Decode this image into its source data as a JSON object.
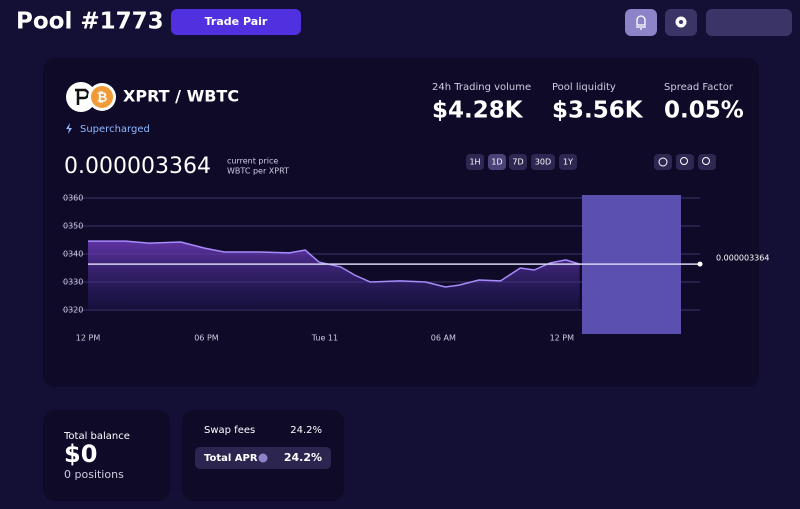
{
  "header": {
    "title": "Pool #1773",
    "button": "Trade Pair"
  },
  "pool": {
    "pair": "XPRT / WBTC",
    "badge": "Supercharged",
    "stats": [
      {
        "label": "24h Trading volume",
        "value": "$4.28K"
      },
      {
        "label": "Pool liquidity",
        "value": "$3.56K"
      },
      {
        "label": "Spread Factor",
        "value": "0.05%"
      }
    ]
  },
  "price": {
    "value": "0.000003364",
    "caption": "current price",
    "unit": "WBTC per XPRT"
  },
  "ranges": [
    "1H",
    "1D",
    "7D",
    "30D",
    "1Y"
  ],
  "chart_data": {
    "type": "line",
    "x": [
      0,
      1.9,
      3.1,
      4.7,
      5.9,
      6.9,
      8.7,
      10.2,
      11,
      11.7,
      12.8,
      13.5,
      14.3,
      15.8,
      17.1,
      18.1,
      18.8,
      19.8,
      20.9,
      21.9,
      22.6,
      23.4,
      24.2,
      24.9
    ],
    "series": [
      {
        "name": "XPRT / WBTC",
        "color": "#a78bfa",
        "values": [
          3.446e-06,
          3.446e-06,
          3.439e-06,
          3.443e-06,
          3.421e-06,
          3.407e-06,
          3.407e-06,
          3.404e-06,
          3.414e-06,
          3.371e-06,
          3.354e-06,
          3.325e-06,
          3.3e-06,
          3.304e-06,
          3.3e-06,
          3.282e-06,
          3.289e-06,
          3.307e-06,
          3.304e-06,
          3.35e-06,
          3.343e-06,
          3.368e-06,
          3.379e-06,
          3.364e-06
        ]
      }
    ],
    "current_price": 3.364e-06,
    "xlim": [
      0,
      31
    ],
    "xticks": [
      {
        "value": 0,
        "label": "12 PM"
      },
      {
        "value": 6,
        "label": "06 PM"
      },
      {
        "value": 12,
        "label": "Tue 11"
      },
      {
        "value": 18,
        "label": "06 AM"
      },
      {
        "value": 24,
        "label": "12 PM"
      }
    ],
    "ylim": [
      3.2e-06,
      3.6e-06
    ],
    "yticks": [
      {
        "value": 3.6e-06,
        "label": "0360"
      },
      {
        "value": 3.5e-06,
        "label": "0350"
      },
      {
        "value": 3.4e-06,
        "label": "0340"
      },
      {
        "value": 3.3e-06,
        "label": "0330"
      },
      {
        "value": 3.2e-06,
        "label": "0320"
      }
    ],
    "grid": true
  },
  "balance": {
    "label": "Total balance",
    "value": "$0",
    "positions": "0 positions"
  },
  "apr": {
    "swap_label": "Swap fees",
    "swap_value": "24.2%",
    "total_label": "Total APR",
    "total_value": "24.2%"
  }
}
